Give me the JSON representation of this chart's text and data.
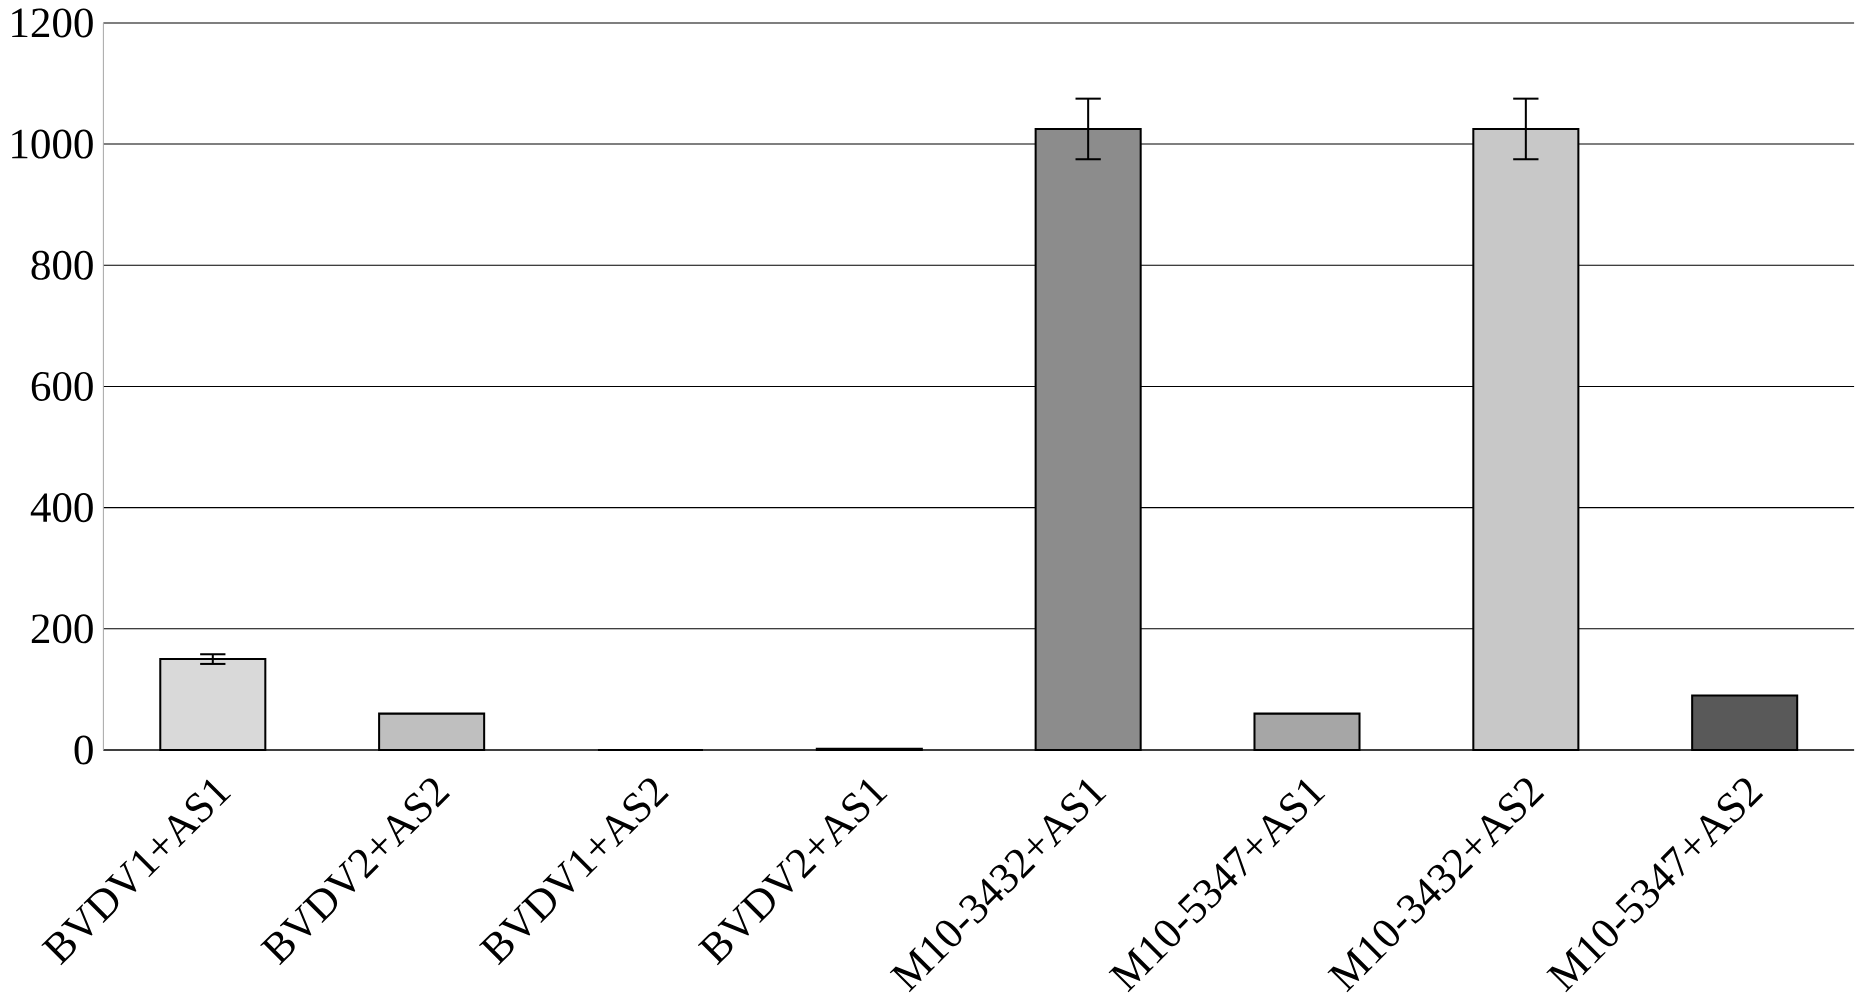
{
  "chart_data": {
    "type": "bar",
    "categories": [
      "BVDV1+AS1",
      "BVDV2+AS2",
      "BVDV1+AS2",
      "BVDV2+AS1",
      "M10-3432+AS1",
      "M10-5347+AS1",
      "M10-3432+AS2",
      "M10-5347+AS2"
    ],
    "values": [
      150,
      60,
      0,
      2,
      1025,
      60,
      1025,
      90
    ],
    "errors": [
      8,
      null,
      null,
      null,
      50,
      null,
      50,
      null
    ],
    "colors": [
      "#d9d9d9",
      "#bfbfbf",
      "#ffffff",
      "#ffffff",
      "#8c8c8c",
      "#a6a6a6",
      "#c8c8c8",
      "#595959"
    ],
    "ylim": [
      0,
      1200
    ],
    "yticks": [
      0,
      200,
      400,
      600,
      800,
      1000,
      1200
    ],
    "grid": "y"
  }
}
